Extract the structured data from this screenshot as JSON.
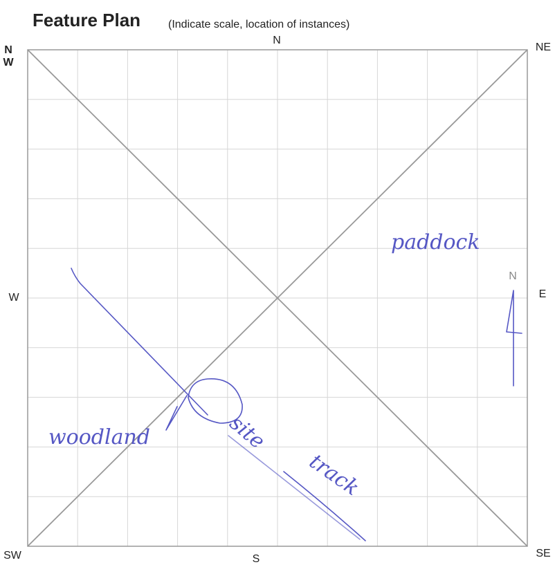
{
  "header": {
    "title": "Feature Plan",
    "subtitle": "(Indicate scale, location of instances)"
  },
  "compass": {
    "n": "N",
    "ne": "NE",
    "nw": [
      "N",
      "W"
    ],
    "w": "W",
    "e": "E",
    "sw": "SW",
    "s": "S",
    "se": "SE"
  },
  "annotations": {
    "paddock": "paddock",
    "woodland": "woodland",
    "site": "site",
    "track": "track",
    "north_arrow": "N"
  }
}
